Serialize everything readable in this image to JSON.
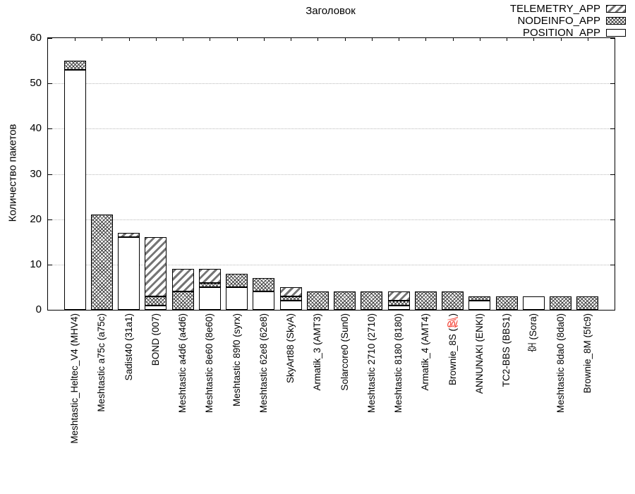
{
  "title": "Заголовок",
  "ylabel": "Количество пакетов",
  "legend": [
    {
      "label": "TELEMETRY_APP",
      "pattern": "diagonal"
    },
    {
      "label": "NODEINFO_APP",
      "pattern": "crosshatch"
    },
    {
      "label": "POSITION_APP",
      "pattern": "plain"
    }
  ],
  "colors": {
    "axis": "#000000",
    "grid": "#b9b9b9",
    "hatch_diagonal": "#757575",
    "hatch_cross": "#3f3f3f",
    "bar_fill": "#ffffff",
    "background": "#ffffff"
  },
  "chart_data": {
    "type": "bar",
    "stacked": true,
    "title": "Заголовок",
    "xlabel": "",
    "ylabel": "Количество пакетов",
    "ylim": [
      0,
      60
    ],
    "yticks": [
      0,
      10,
      20,
      30,
      40,
      50,
      60
    ],
    "grid": "horizontal dotted at yticks",
    "legend_position": "top-right inside",
    "bar_patterns": {
      "POSITION_APP": "plain",
      "NODEINFO_APP": "crosshatch",
      "TELEMETRY_APP": "diagonal"
    },
    "stack_order_bottom_to_top": [
      "POSITION_APP",
      "NODEINFO_APP",
      "TELEMETRY_APP"
    ],
    "categories": [
      "Meshtastic_Heltec_V4 (MHV4)",
      "Meshtastic a75c (a75c)",
      "Sadist40 (31a1)",
      "BOND (007)",
      "Meshtastic a4d6 (a4d6)",
      "Meshtastic 8e60 (8e60)",
      "Meshtastic 89f0 (syrx)",
      "Meshtastic 62e8 (62e8)",
      "SkyArt88 (SkyA)",
      "Armatik_3 (AMT3)",
      "Solarcore0 (Sun0)",
      "Meshtastic 2710 (2710)",
      "Meshtastic 8180 (8180)",
      "Armatik_4 (AMT4)",
      "Brownie_8S (💯)",
      "ANNUNAKI (ENKI)",
      "TC2-BBS (BBS1)",
      "空 (Sora)",
      "Meshtastic 8da0 (8da0)",
      "Brownie_8M (5fc9)"
    ],
    "series": [
      {
        "name": "POSITION_APP",
        "pattern": "plain",
        "values": [
          53,
          0,
          16,
          1,
          0,
          5,
          5,
          4,
          2,
          0,
          0,
          0,
          1,
          0,
          0,
          2,
          0,
          3,
          0,
          0
        ]
      },
      {
        "name": "NODEINFO_APP",
        "pattern": "crosshatch",
        "values": [
          2,
          21,
          0,
          2,
          4,
          1,
          3,
          3,
          1,
          4,
          4,
          4,
          1,
          4,
          4,
          1,
          3,
          0,
          3,
          3
        ]
      },
      {
        "name": "TELEMETRY_APP",
        "pattern": "diagonal",
        "values": [
          0,
          0,
          1,
          13,
          5,
          3,
          0,
          0,
          2,
          0,
          0,
          0,
          2,
          0,
          0,
          0,
          0,
          0,
          0,
          0
        ]
      }
    ],
    "totals": [
      55,
      21,
      17,
      16,
      9,
      9,
      8,
      7,
      5,
      4,
      4,
      4,
      4,
      4,
      4,
      3,
      3,
      3,
      3,
      3
    ]
  }
}
